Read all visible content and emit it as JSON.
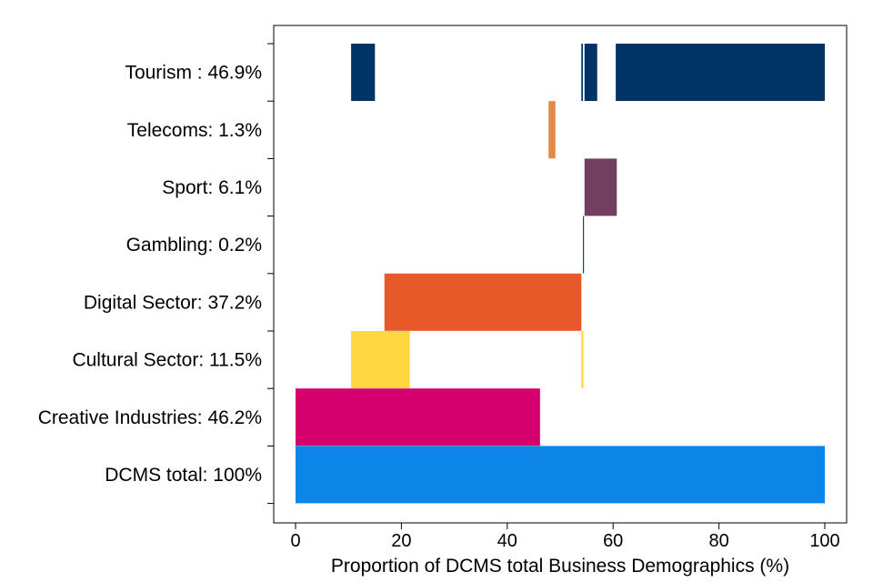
{
  "chart_data": {
    "type": "bar",
    "orientation": "horizontal-floating",
    "title": "",
    "xlabel": "Proportion of DCMS total Business Demographics (%)",
    "ylabel": "",
    "xlim": [
      0,
      100
    ],
    "xticks": [
      0,
      20,
      40,
      60,
      80,
      100
    ],
    "grid": false,
    "legend": "none",
    "categories": [
      "Tourism : 46.9%",
      "Telecoms: 1.3%",
      "Sport: 6.1%",
      "Gambling: 0.2%",
      "Digital Sector: 37.2%",
      "Cultural Sector: 11.5%",
      "Creative Industries: 46.2%",
      "DCMS total: 100%"
    ],
    "values": [
      46.9,
      1.3,
      6.1,
      0.2,
      37.2,
      11.5,
      46.2,
      100
    ],
    "series": [
      {
        "name": "Tourism",
        "color": "#003366",
        "segments": [
          [
            10.5,
            15.0
          ],
          [
            54.0,
            54.3
          ],
          [
            54.6,
            57.0
          ],
          [
            60.5,
            100.0
          ]
        ]
      },
      {
        "name": "Telecoms",
        "color": "#E0894A",
        "segments": [
          [
            47.8,
            49.1
          ]
        ]
      },
      {
        "name": "Sport",
        "color": "#733F5E",
        "segments": [
          [
            54.6,
            60.7
          ]
        ]
      },
      {
        "name": "Gambling",
        "color": "#12436D",
        "segments": [
          [
            54.3,
            54.5
          ]
        ]
      },
      {
        "name": "Digital Sector",
        "color": "#E8592A",
        "segments": [
          [
            16.8,
            54.0
          ]
        ]
      },
      {
        "name": "Cultural Sector",
        "color": "#FDD840",
        "segments": [
          [
            10.5,
            21.6
          ],
          [
            54.0,
            54.4
          ]
        ]
      },
      {
        "name": "Creative Industries",
        "color": "#D5006D",
        "segments": [
          [
            0,
            46.2
          ]
        ]
      },
      {
        "name": "DCMS total",
        "color": "#0C85E8",
        "segments": [
          [
            0,
            100
          ]
        ]
      }
    ]
  }
}
